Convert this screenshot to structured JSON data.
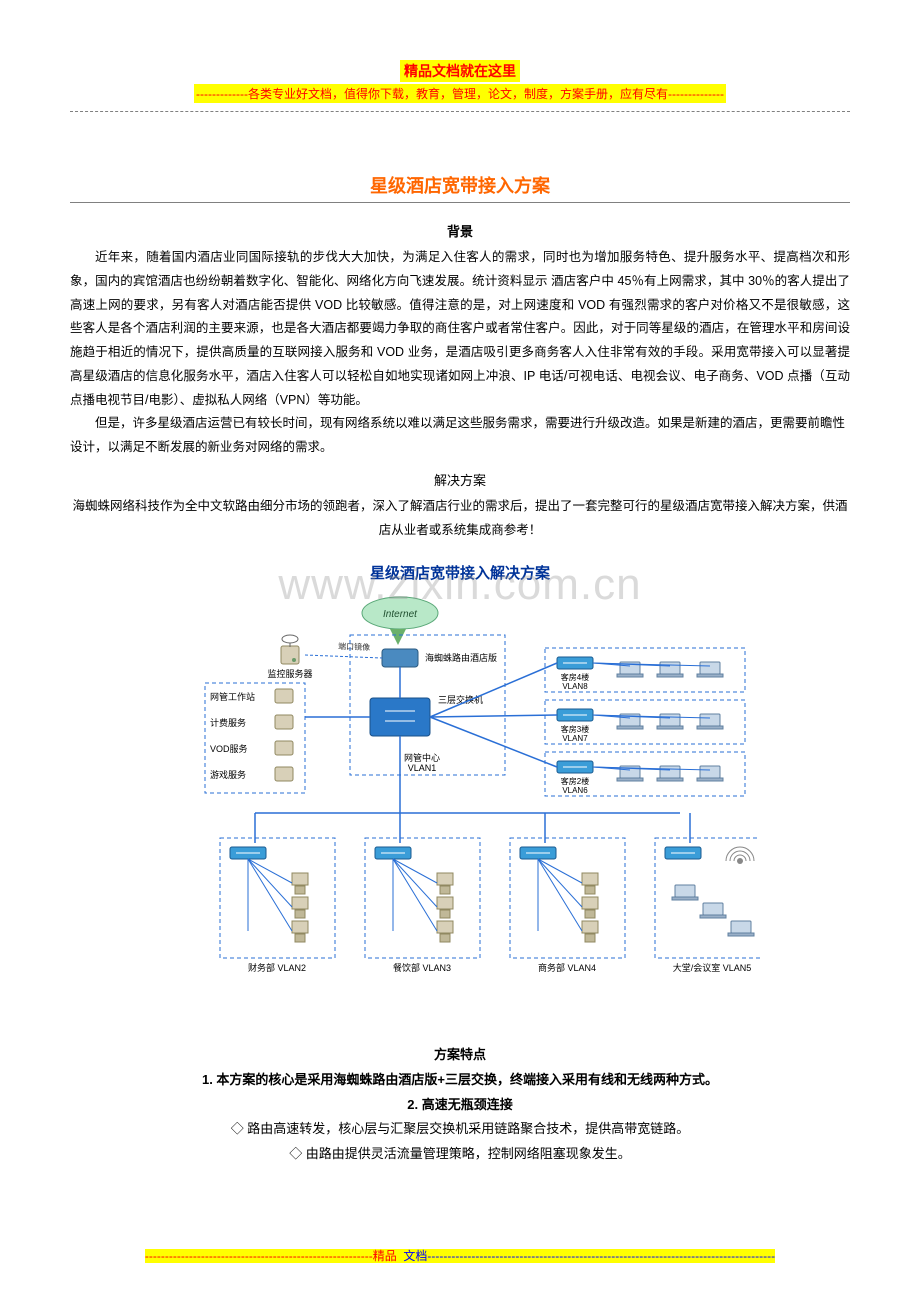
{
  "header": {
    "title": "精品文档就在这里",
    "subtitle": "-------------各类专业好文档，值得你下载，教育，管理，论文，制度，方案手册，应有尽有--------------"
  },
  "doc_title": "星级酒店宽带接入方案",
  "sections": {
    "bg_head": "背景",
    "bg_p1": "近年来，随着国内酒店业同国际接轨的步伐大大加快，为满足入住客人的需求，同时也为增加服务特色、提升服务水平、提高档次和形象，国内的宾馆酒店也纷纷朝着数字化、智能化、网络化方向飞速发展。统计资料显示 酒店客户中 45％有上网需求，其中 30％的客人提出了高速上网的要求，另有客人对酒店能否提供 VOD 比较敏感。值得注意的是，对上网速度和 VOD 有强烈需求的客户对价格又不是很敏感，这些客人是各个酒店利润的主要来源，也是各大酒店都要竭力争取的商住客户或者常住客户。因此，对于同等星级的酒店，在管理水平和房间设施趋于相近的情况下，提供高质量的互联网接入服务和 VOD 业务，是酒店吸引更多商务客人入住非常有效的手段。采用宽带接入可以显著提高星级酒店的信息化服务水平，酒店入住客人可以轻松自如地实现诸如网上冲浪、IP 电话/可视电话、电视会议、电子商务、VOD 点播（互动点播电视节目/电影）、虚拟私人网络（VPN）等功能。",
    "bg_p2": "但是，许多星级酒店运营已有较长时间，现有网络系统以难以满足这些服务需求，需要进行升级改造。如果是新建的酒店，更需要前瞻性设计，以满足不断发展的新业务对网络的需求。",
    "sol_head": "解决方案",
    "sol_p1": "海蜘蛛网络科技作为全中文软路由细分市场的领跑者，深入了解酒店行业的需求后，提出了一套完整可行的星级酒店宽带接入解决方案，供酒店从业者或系统集成商参考！"
  },
  "watermark": "www.zixin.com.cn",
  "diagram": {
    "title": "星级酒店宽带接入解决方案",
    "colors": {
      "title": "#003399",
      "box_stroke": "#2a6fd6",
      "box_fill": "#eaf2ff",
      "line": "#2a6fd6",
      "cloud": "#7fd0a0",
      "switch": "#3a9dd8",
      "core_switch": "#2a78c8",
      "laptop": "#c8d8e8",
      "pc": "#d8d0b8"
    },
    "internet": "Internet",
    "core_label": "三层交换机",
    "router_label": "海蜘蛛路由酒店版",
    "monitor_label": "监控服务器",
    "mirror_label": "端口镜像",
    "center_label": "网管中心\nVLAN1",
    "left_servers": [
      "网管工作站",
      "计费服务",
      "VOD服务",
      "游戏服务"
    ],
    "right_rooms": [
      {
        "label": "客房4楼",
        "vlan": "VLAN8"
      },
      {
        "label": "客房3楼",
        "vlan": "VLAN7"
      },
      {
        "label": "客房2楼",
        "vlan": "VLAN6"
      }
    ],
    "bottom": [
      {
        "label": "财务部 VLAN2"
      },
      {
        "label": "餐饮部 VLAN3"
      },
      {
        "label": "商务部 VLAN4"
      },
      {
        "label": "大堂/会议室 VLAN5"
      }
    ]
  },
  "features": {
    "head": "方案特点",
    "f1": "1. 本方案的核心是采用海蜘蛛路由酒店版+三层交换，终端接入采用有线和无线两种方式。",
    "f2_head": "2. 高速无瓶颈连接",
    "f2_a": "◇ 路由高速转发，核心层与汇聚层交换机采用链路聚合技术，提供高带宽链路。",
    "f2_b": "◇ 由路由提供灵活流量管理策略，控制网络阻塞现象发生。"
  },
  "footer": {
    "dash": "---------------------------------------------------------",
    "label": "精品",
    "label2": "文档",
    "dash2": "---------------------------------------------------------------------------------------"
  }
}
